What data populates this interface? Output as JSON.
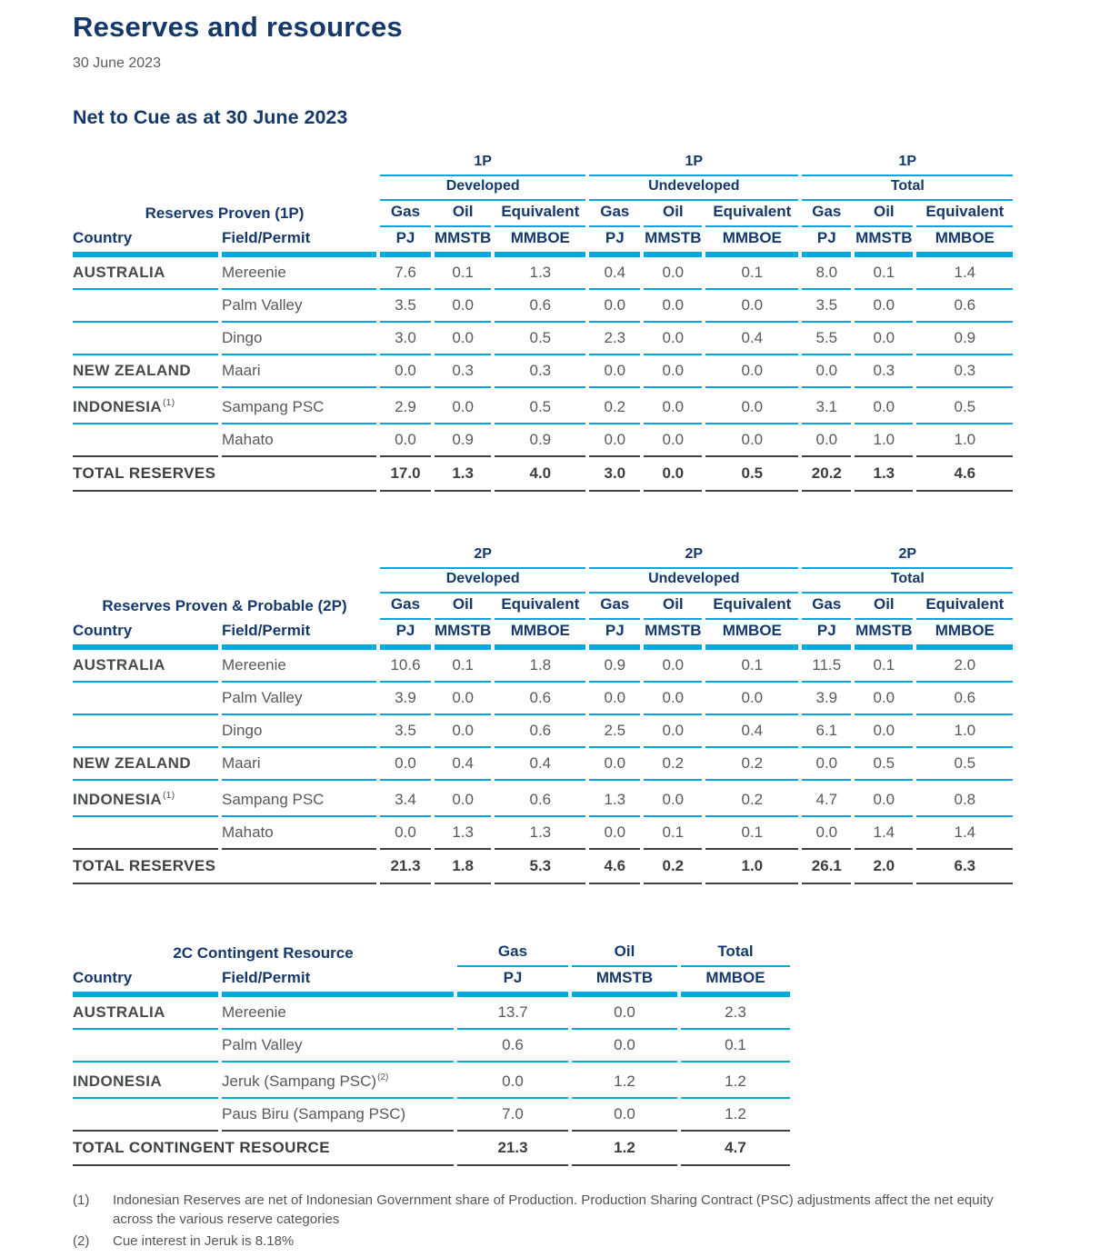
{
  "page": {
    "title": "Reserves and resources",
    "date": "30 June 2023",
    "section_heading": "Net to Cue as at 30 June 2023"
  },
  "colors": {
    "navy": "#16396b",
    "cyan": "#00a9e0",
    "gray": "#58595b",
    "dark": "#414042"
  },
  "tables": [
    {
      "id": "reserves-proven-1p",
      "layout": "wide",
      "class_label": "1P",
      "groups": [
        "Developed",
        "Undeveloped",
        "Total"
      ],
      "title": "Reserves Proven (1P)",
      "country_header": "Country",
      "field_header": "Field/Permit",
      "measure_headers": [
        "Gas",
        "Oil",
        "Equivalent"
      ],
      "unit_headers": [
        "PJ",
        "MMSTB",
        "MMBOE"
      ],
      "rows": [
        {
          "country": "AUSTRALIA",
          "country_sup": "",
          "field": "Mereenie",
          "field_sup": "",
          "values": [
            "7.6",
            "0.1",
            "1.3",
            "0.4",
            "0.0",
            "0.1",
            "8.0",
            "0.1",
            "1.4"
          ]
        },
        {
          "country": "",
          "country_sup": "",
          "field": "Palm Valley",
          "field_sup": "",
          "values": [
            "3.5",
            "0.0",
            "0.6",
            "0.0",
            "0.0",
            "0.0",
            "3.5",
            "0.0",
            "0.6"
          ]
        },
        {
          "country": "",
          "country_sup": "",
          "field": "Dingo",
          "field_sup": "",
          "values": [
            "3.0",
            "0.0",
            "0.5",
            "2.3",
            "0.0",
            "0.4",
            "5.5",
            "0.0",
            "0.9"
          ]
        },
        {
          "country": "NEW ZEALAND",
          "country_sup": "",
          "field": "Maari",
          "field_sup": "",
          "values": [
            "0.0",
            "0.3",
            "0.3",
            "0.0",
            "0.0",
            "0.0",
            "0.0",
            "0.3",
            "0.3"
          ]
        },
        {
          "country": "INDONESIA",
          "country_sup": "(1)",
          "field": "Sampang PSC",
          "field_sup": "",
          "values": [
            "2.9",
            "0.0",
            "0.5",
            "0.2",
            "0.0",
            "0.0",
            "3.1",
            "0.0",
            "0.5"
          ]
        },
        {
          "country": "",
          "country_sup": "",
          "field": "Mahato",
          "field_sup": "",
          "values": [
            "0.0",
            "0.9",
            "0.9",
            "0.0",
            "0.0",
            "0.0",
            "0.0",
            "1.0",
            "1.0"
          ]
        }
      ],
      "total_row": {
        "label": "TOTAL RESERVES",
        "values": [
          "17.0",
          "1.3",
          "4.0",
          "3.0",
          "0.0",
          "0.5",
          "20.2",
          "1.3",
          "4.6"
        ]
      }
    },
    {
      "id": "reserves-proven-probable-2p",
      "layout": "wide",
      "class_label": "2P",
      "groups": [
        "Developed",
        "Undeveloped",
        "Total"
      ],
      "title": "Reserves Proven & Probable (2P)",
      "country_header": "Country",
      "field_header": "Field/Permit",
      "measure_headers": [
        "Gas",
        "Oil",
        "Equivalent"
      ],
      "unit_headers": [
        "PJ",
        "MMSTB",
        "MMBOE"
      ],
      "rows": [
        {
          "country": "AUSTRALIA",
          "country_sup": "",
          "field": "Mereenie",
          "field_sup": "",
          "values": [
            "10.6",
            "0.1",
            "1.8",
            "0.9",
            "0.0",
            "0.1",
            "11.5",
            "0.1",
            "2.0"
          ]
        },
        {
          "country": "",
          "country_sup": "",
          "field": "Palm Valley",
          "field_sup": "",
          "values": [
            "3.9",
            "0.0",
            "0.6",
            "0.0",
            "0.0",
            "0.0",
            "3.9",
            "0.0",
            "0.6"
          ]
        },
        {
          "country": "",
          "country_sup": "",
          "field": "Dingo",
          "field_sup": "",
          "values": [
            "3.5",
            "0.0",
            "0.6",
            "2.5",
            "0.0",
            "0.4",
            "6.1",
            "0.0",
            "1.0"
          ]
        },
        {
          "country": "NEW ZEALAND",
          "country_sup": "",
          "field": "Maari",
          "field_sup": "",
          "values": [
            "0.0",
            "0.4",
            "0.4",
            "0.0",
            "0.2",
            "0.2",
            "0.0",
            "0.5",
            "0.5"
          ]
        },
        {
          "country": "INDONESIA",
          "country_sup": "(1)",
          "field": "Sampang PSC",
          "field_sup": "",
          "values": [
            "3.4",
            "0.0",
            "0.6",
            "1.3",
            "0.0",
            "0.2",
            "4.7",
            "0.0",
            "0.8"
          ]
        },
        {
          "country": "",
          "country_sup": "",
          "field": "Mahato",
          "field_sup": "",
          "values": [
            "0.0",
            "1.3",
            "1.3",
            "0.0",
            "0.1",
            "0.1",
            "0.0",
            "1.4",
            "1.4"
          ]
        }
      ],
      "total_row": {
        "label": "TOTAL RESERVES",
        "values": [
          "21.3",
          "1.8",
          "5.3",
          "4.6",
          "0.2",
          "1.0",
          "26.1",
          "2.0",
          "6.3"
        ]
      }
    },
    {
      "id": "contingent-resource-2c",
      "layout": "narrow",
      "title": "2C Contingent Resource",
      "country_header": "Country",
      "field_header": "Field/Permit",
      "measure_headers": [
        "Gas",
        "Oil",
        "Total"
      ],
      "unit_headers": [
        "PJ",
        "MMSTB",
        "MMBOE"
      ],
      "rows": [
        {
          "country": "AUSTRALIA",
          "country_sup": "",
          "field": "Mereenie",
          "field_sup": "",
          "values": [
            "13.7",
            "0.0",
            "2.3"
          ]
        },
        {
          "country": "",
          "country_sup": "",
          "field": "Palm Valley",
          "field_sup": "",
          "values": [
            "0.6",
            "0.0",
            "0.1"
          ]
        },
        {
          "country": "INDONESIA",
          "country_sup": "",
          "field": "Jeruk (Sampang PSC)",
          "field_sup": "(2)",
          "values": [
            "0.0",
            "1.2",
            "1.2"
          ]
        },
        {
          "country": "",
          "country_sup": "",
          "field": "Paus Biru (Sampang PSC)",
          "field_sup": "",
          "values": [
            "7.0",
            "0.0",
            "1.2"
          ]
        }
      ],
      "total_row": {
        "label": "TOTAL CONTINGENT RESOURCE",
        "values": [
          "21.3",
          "1.2",
          "4.7"
        ]
      }
    }
  ],
  "footnotes": [
    {
      "marker": "(1)",
      "text": "Indonesian Reserves are net of Indonesian Government share of Production. Production Sharing Contract (PSC) adjustments affect the net equity across the various reserve categories"
    },
    {
      "marker": "(2)",
      "text": "Cue interest in Jeruk is 8.18%"
    }
  ]
}
